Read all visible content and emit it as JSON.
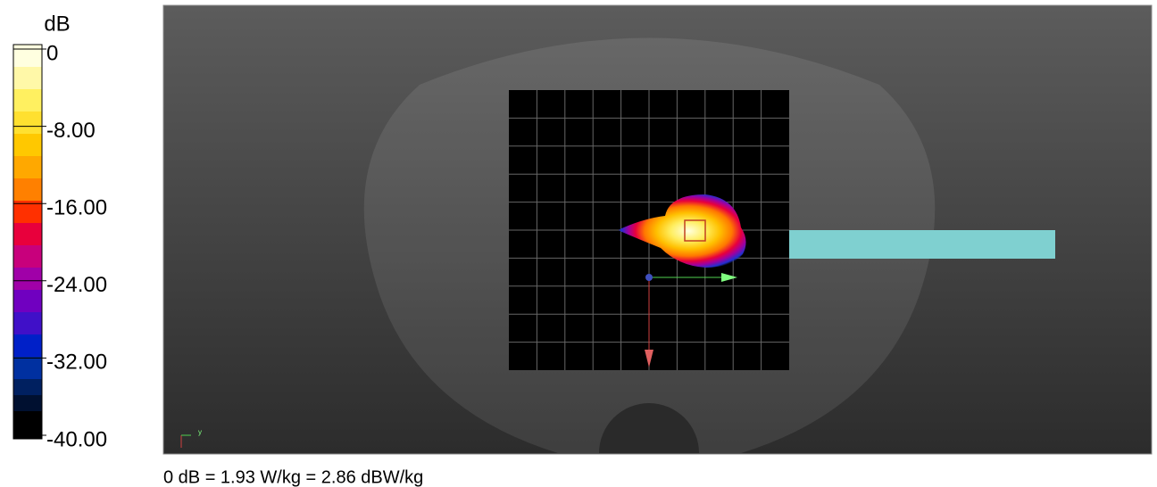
{
  "colorbar": {
    "unit": "dB",
    "labels": [
      "0",
      "-8.00",
      "-16.00",
      "-24.00",
      "-32.00",
      "-40.00"
    ]
  },
  "view": {
    "axis_label": "y"
  },
  "footer": "0 dB = 1.93 W/kg = 2.86 dBW/kg"
}
